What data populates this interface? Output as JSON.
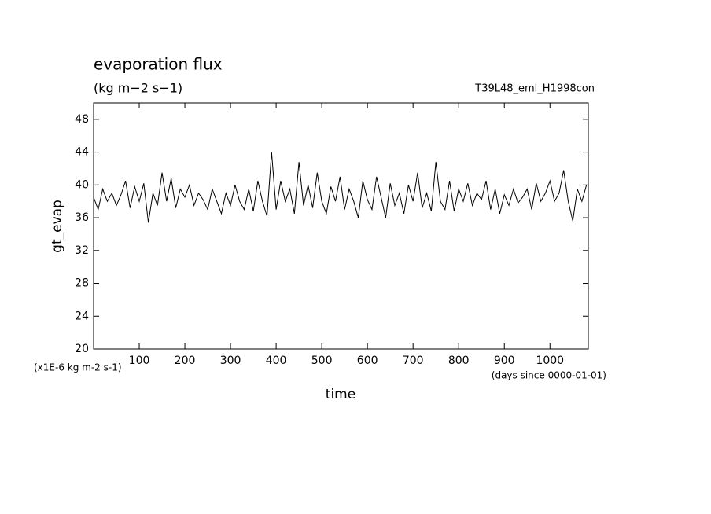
{
  "chart_data": {
    "type": "line",
    "title": "evaporation flux",
    "subtitle": "(kg m−2 s−1)",
    "annotation": "T39L48_eml_H1998con",
    "y_label": "gt_evap",
    "x_label": "time",
    "y_units": "(x1E-6 kg m-2 s-1)",
    "x_units": "(days since 0000-01-01)",
    "xlim": [
      0,
      1084
    ],
    "ylim": [
      20,
      50
    ],
    "xticks": [
      100,
      200,
      300,
      400,
      500,
      600,
      700,
      800,
      900,
      1000
    ],
    "yticks": [
      20,
      24,
      28,
      32,
      36,
      40,
      44,
      48
    ],
    "series": [
      {
        "color": "#000000",
        "x": [
          0,
          10,
          20,
          30,
          40,
          50,
          60,
          70,
          80,
          90,
          100,
          110,
          120,
          130,
          140,
          150,
          160,
          170,
          180,
          190,
          200,
          210,
          220,
          230,
          240,
          250,
          260,
          270,
          280,
          290,
          300,
          310,
          320,
          330,
          340,
          350,
          360,
          370,
          380,
          390,
          400,
          410,
          420,
          430,
          440,
          450,
          460,
          470,
          480,
          490,
          500,
          510,
          520,
          530,
          540,
          550,
          560,
          570,
          580,
          590,
          600,
          610,
          620,
          630,
          640,
          650,
          660,
          670,
          680,
          690,
          700,
          710,
          720,
          730,
          740,
          750,
          760,
          770,
          780,
          790,
          800,
          810,
          820,
          830,
          840,
          850,
          860,
          870,
          880,
          890,
          900,
          910,
          920,
          930,
          940,
          950,
          960,
          970,
          980,
          990,
          1000,
          1010,
          1020,
          1030,
          1040,
          1050,
          1060,
          1070,
          1080
        ],
        "values": [
          38.5,
          37,
          39.5,
          38,
          39,
          37.5,
          38.8,
          40.5,
          37.2,
          39.8,
          38,
          40.2,
          35.4,
          39,
          37.5,
          41.5,
          38,
          40.8,
          37.2,
          39.5,
          38.5,
          40,
          37.5,
          39,
          38.2,
          37,
          39.5,
          38,
          36.5,
          39,
          37.5,
          40,
          38,
          37,
          39.5,
          36.8,
          40.5,
          38,
          36.2,
          44,
          37,
          40.5,
          38,
          39.5,
          36.5,
          42.8,
          37.5,
          40,
          37.2,
          41.5,
          38,
          36.5,
          39.8,
          38,
          41,
          37,
          39.5,
          38,
          36,
          40.5,
          38.2,
          37,
          41,
          38.5,
          36,
          40.2,
          37.5,
          39,
          36.5,
          40,
          38,
          41.5,
          37.2,
          39,
          36.8,
          42.8,
          38,
          37,
          40.5,
          36.8,
          39.5,
          38,
          40.2,
          37.5,
          39,
          38.2,
          40.5,
          37,
          39.5,
          36.5,
          38.8,
          37.5,
          39.5,
          37.8,
          38.5,
          39.5,
          37,
          40.2,
          38,
          39,
          40.5,
          38,
          39,
          41.8,
          38,
          35.6,
          39.5,
          38,
          40
        ]
      }
    ]
  }
}
